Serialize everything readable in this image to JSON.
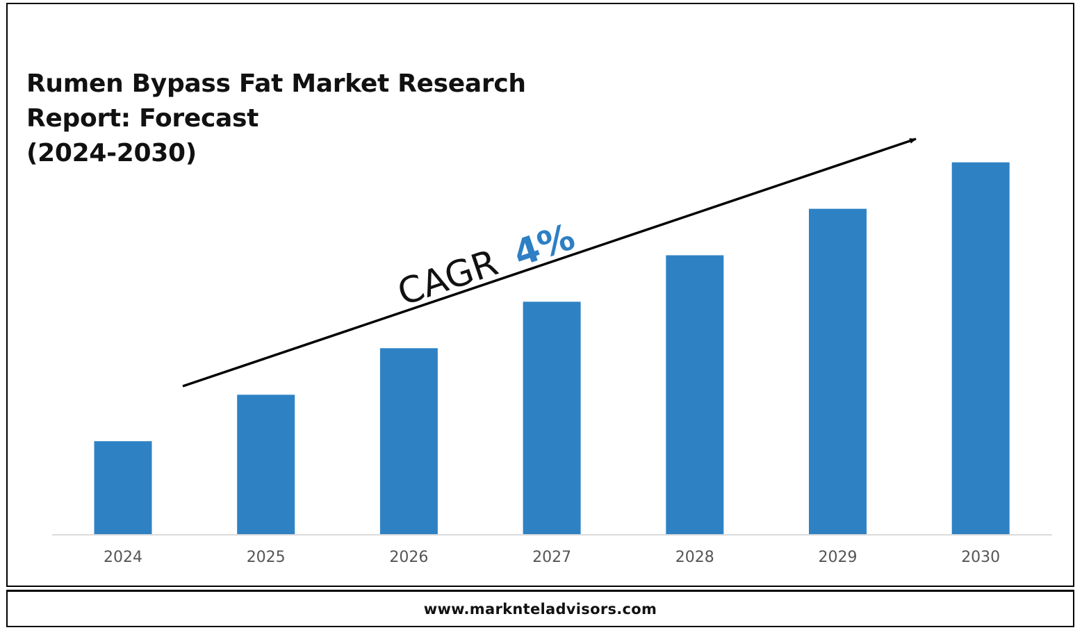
{
  "title_lines": [
    "Rumen Bypass Fat Market Research",
    "Report: Forecast",
    "(2024-2030)"
  ],
  "annotation": {
    "label": "CAGR",
    "value": "4%",
    "value_color": "#2e7fc4",
    "label_color": "#111111"
  },
  "footer": {
    "website": "www.marknteladvisors.com"
  },
  "chart_data": {
    "type": "bar",
    "title": "Rumen Bypass Fat Market Research Report: Forecast (2024-2030)",
    "categories": [
      "2024",
      "2025",
      "2026",
      "2027",
      "2028",
      "2029",
      "2030"
    ],
    "values": [
      1,
      1.5,
      2,
      2.5,
      3,
      3.5,
      4
    ],
    "ylim": [
      0,
      4.05
    ],
    "xlabel": "",
    "ylabel": "",
    "grid": false,
    "bar_color": "#2e82c4",
    "axis_color": "#d0d0d0",
    "tick_label_color": "#555555",
    "trend_arrow": true
  }
}
